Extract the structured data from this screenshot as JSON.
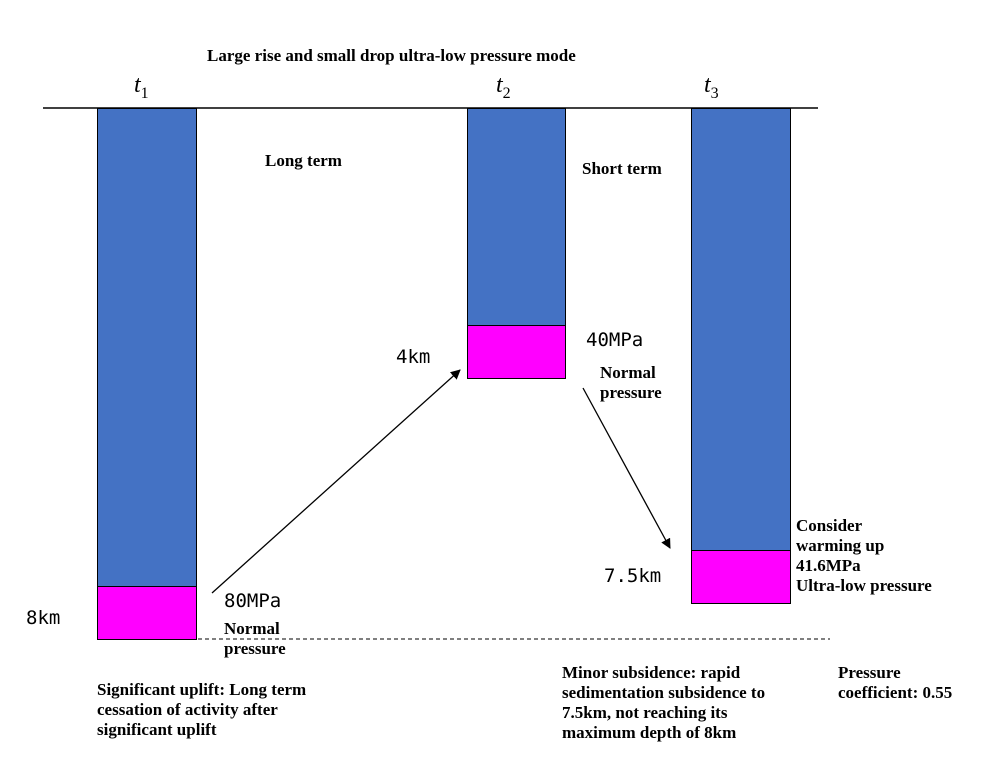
{
  "title": "Large rise and small drop ultra-low pressure mode",
  "stages": [
    {
      "time_var": "t",
      "time_sub": "1",
      "depth_label": "8km",
      "pressure_value": "80MPa",
      "pressure_state_line1": "Normal",
      "pressure_state_line2": "pressure"
    },
    {
      "time_var": "t",
      "time_sub": "2",
      "depth_label": "4km",
      "pressure_value": "40MPa",
      "pressure_state_line1": "Normal",
      "pressure_state_line2": "pressure"
    },
    {
      "time_var": "t",
      "time_sub": "3",
      "depth_label": "7.5km",
      "pressure_value": "41.6MPa",
      "pressure_state_line1": "Ultra-low pressure",
      "note_line1": "Consider",
      "note_line2": "warming up"
    }
  ],
  "transitions": [
    {
      "label": "Long term"
    },
    {
      "label": "Short term"
    }
  ],
  "captions": {
    "uplift": [
      "Significant uplift: Long term",
      "cessation of activity after",
      "significant uplift"
    ],
    "subsidence": [
      "Minor subsidence: rapid",
      "sedimentation subsidence to",
      "7.5km, not reaching its",
      "maximum depth of 8km"
    ],
    "coefficient": [
      "Pressure",
      "coefficient: 0.55"
    ]
  },
  "colors": {
    "column": "#4472c4",
    "reservoir": "#ff00ff"
  }
}
